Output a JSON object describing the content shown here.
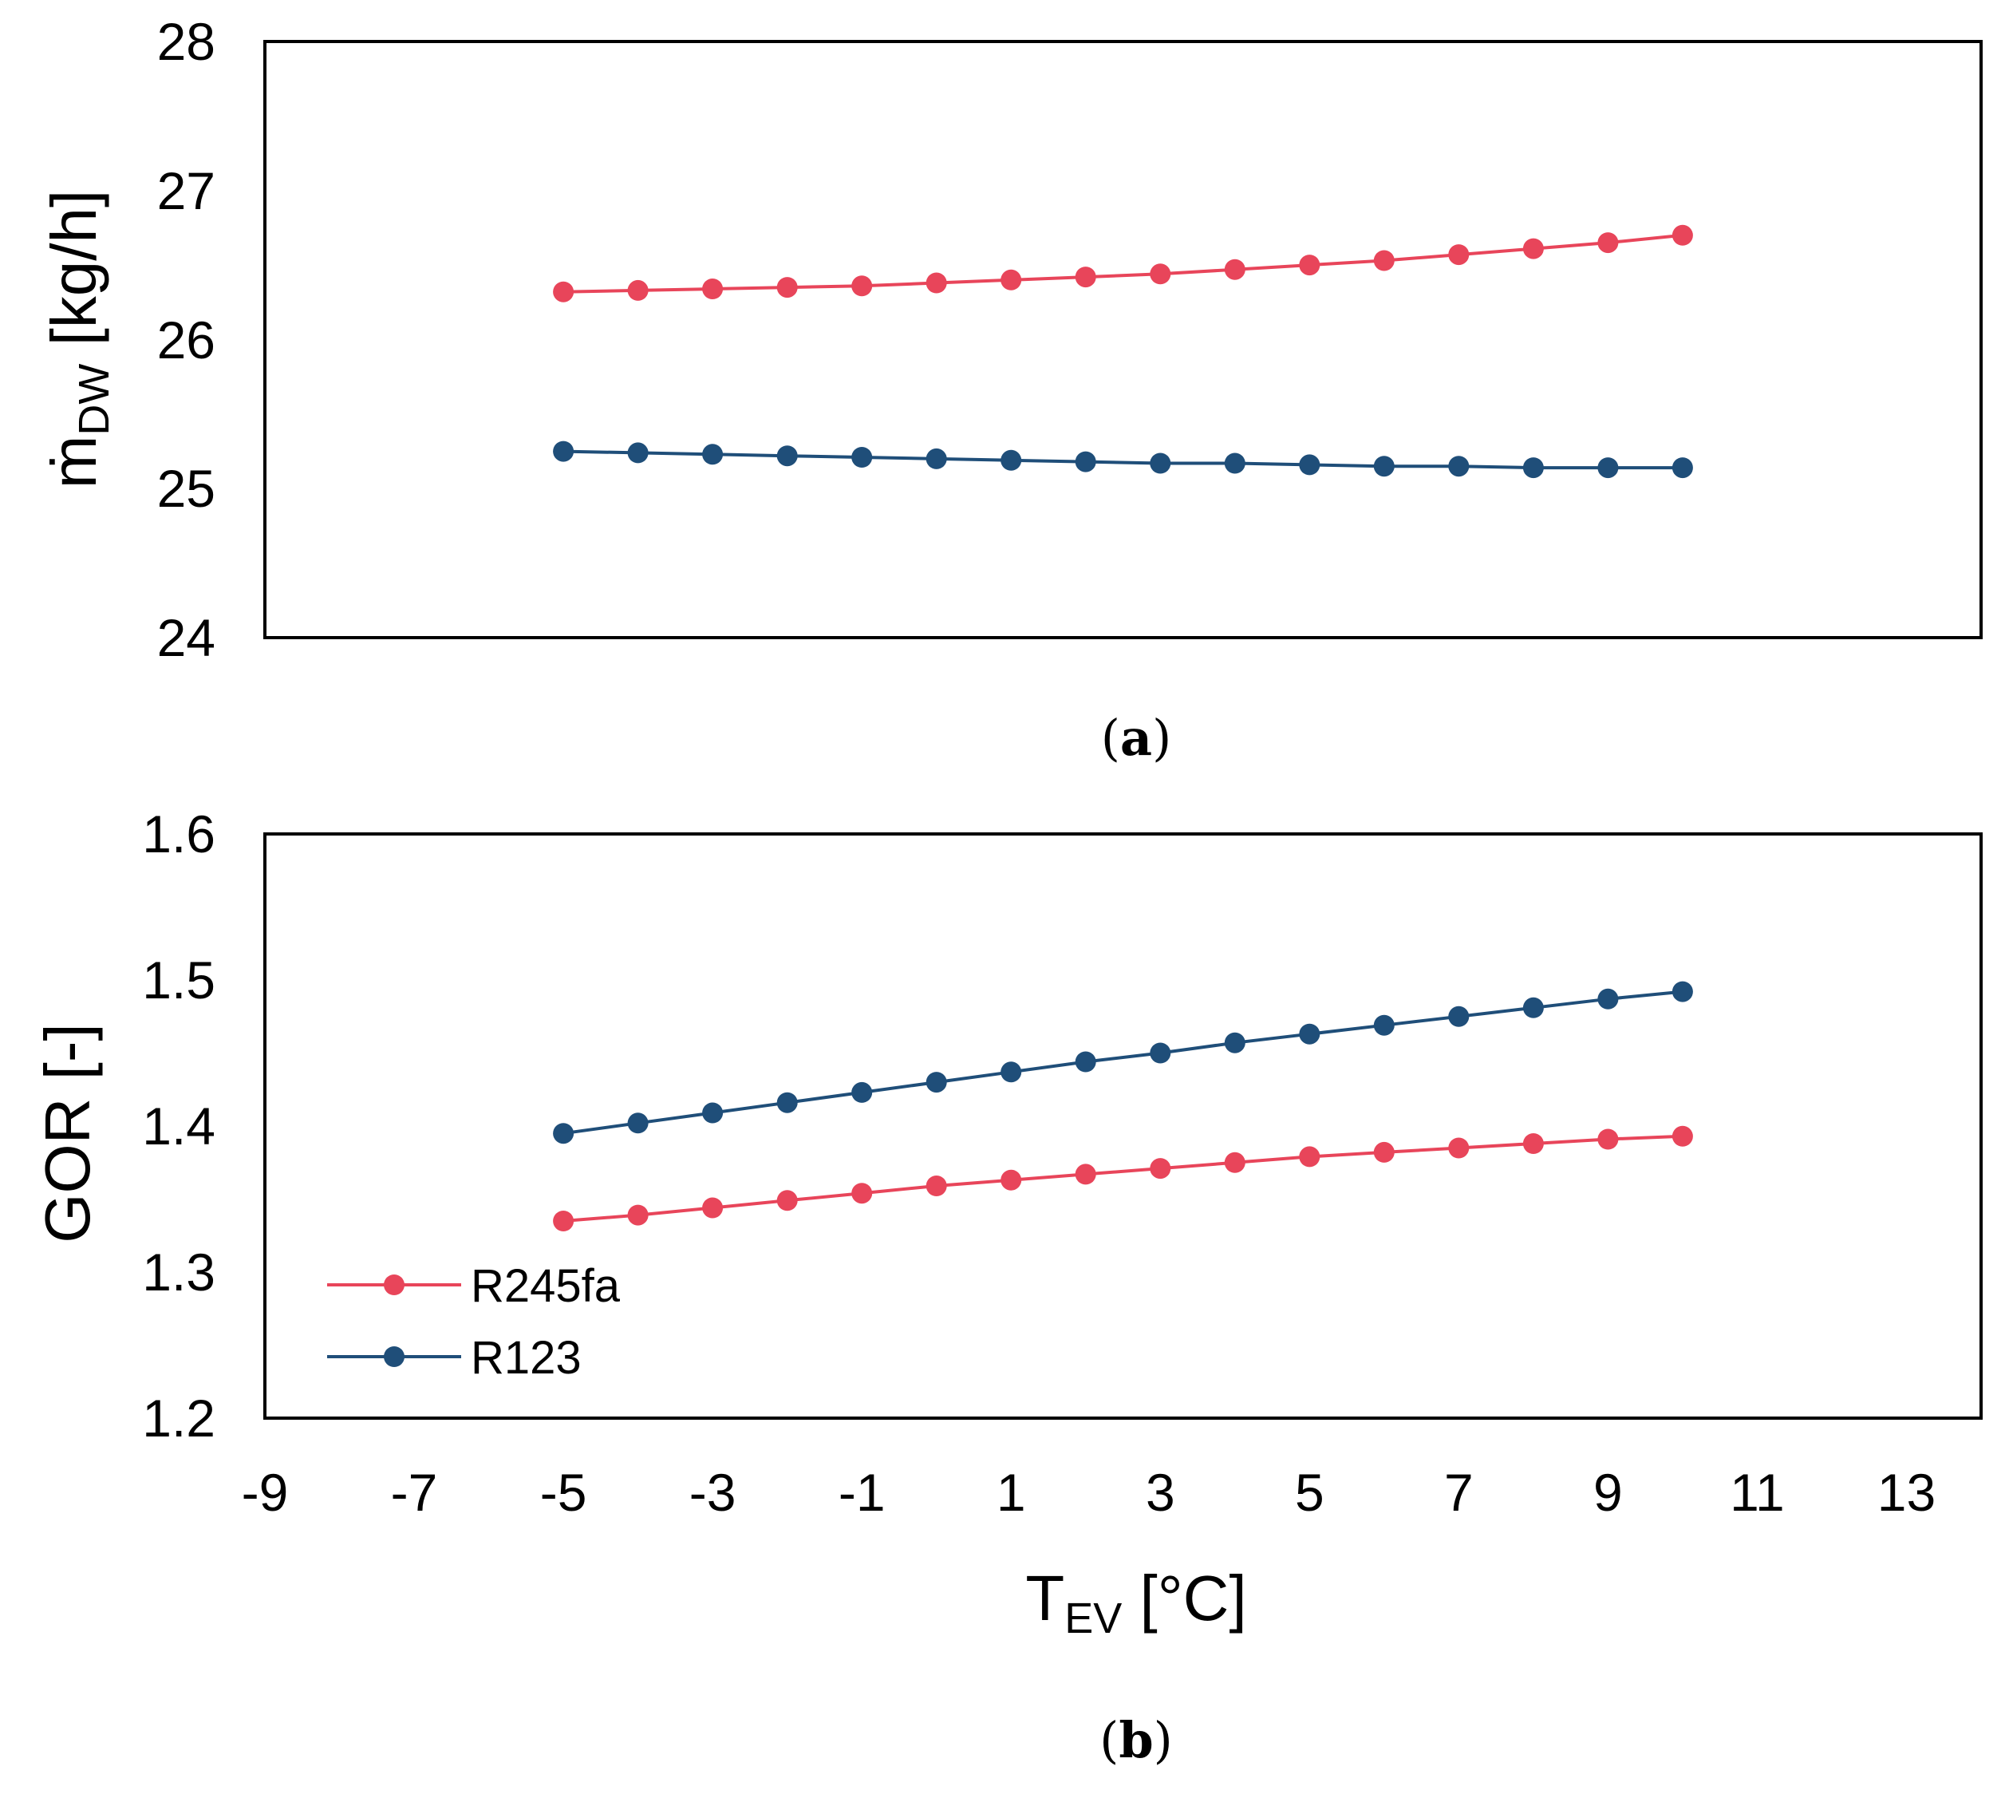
{
  "colors": {
    "r245fa": "#E8455A",
    "r123": "#1F4E79",
    "axis": "#000000"
  },
  "chart_data": [
    {
      "type": "line",
      "panel": "a",
      "caption": {
        "open": "(",
        "letter": "a",
        "close": ")"
      },
      "ylabel": {
        "main": "ṁ",
        "sub": "DW",
        "unit": " [kg/h]"
      },
      "ylim": [
        24,
        28
      ],
      "yticks": [
        "24",
        "25",
        "26",
        "27",
        "28"
      ],
      "xlim": [
        -9,
        14
      ],
      "series": [
        {
          "name": "R245fa",
          "x": [
            -5,
            -4,
            -3,
            -2,
            -1,
            0,
            1,
            2,
            3,
            4,
            5,
            6,
            7,
            8,
            9,
            10
          ],
          "values": [
            26.32,
            26.33,
            26.34,
            26.35,
            26.36,
            26.38,
            26.4,
            26.42,
            26.44,
            26.47,
            26.5,
            26.53,
            26.57,
            26.61,
            26.65,
            26.7
          ]
        },
        {
          "name": "R123",
          "x": [
            -5,
            -4,
            -3,
            -2,
            -1,
            0,
            1,
            2,
            3,
            4,
            5,
            6,
            7,
            8,
            9,
            10
          ],
          "values": [
            25.25,
            25.24,
            25.23,
            25.22,
            25.21,
            25.2,
            25.19,
            25.18,
            25.17,
            25.17,
            25.16,
            25.15,
            25.15,
            25.14,
            25.14,
            25.14
          ]
        }
      ]
    },
    {
      "type": "line",
      "panel": "b",
      "caption": {
        "open": "(",
        "letter": "b",
        "close": ")"
      },
      "ylabel": {
        "main": "GOR [-]"
      },
      "xlabel": {
        "main": "T",
        "sub": "EV",
        "unit": " [°C]"
      },
      "ylim": [
        1.2,
        1.6
      ],
      "yticks": [
        "1.2",
        "1.3",
        "1.4",
        "1.5",
        "1.6"
      ],
      "xlim": [
        -9,
        14
      ],
      "xticks": [
        "-9",
        "-7",
        "-5",
        "-3",
        "-1",
        "1",
        "3",
        "5",
        "7",
        "9",
        "11",
        "13"
      ],
      "legend": {
        "position": "bottom-left",
        "entries": [
          "R245fa",
          "R123"
        ]
      },
      "series": [
        {
          "name": "R245fa",
          "x": [
            -5,
            -4,
            -3,
            -2,
            -1,
            0,
            1,
            2,
            3,
            4,
            5,
            6,
            7,
            8,
            9,
            10
          ],
          "values": [
            1.335,
            1.339,
            1.344,
            1.349,
            1.354,
            1.359,
            1.363,
            1.367,
            1.371,
            1.375,
            1.379,
            1.382,
            1.385,
            1.388,
            1.391,
            1.393
          ]
        },
        {
          "name": "R123",
          "x": [
            -5,
            -4,
            -3,
            -2,
            -1,
            0,
            1,
            2,
            3,
            4,
            5,
            6,
            7,
            8,
            9,
            10
          ],
          "values": [
            1.395,
            1.402,
            1.409,
            1.416,
            1.423,
            1.43,
            1.437,
            1.444,
            1.45,
            1.457,
            1.463,
            1.469,
            1.475,
            1.481,
            1.487,
            1.492
          ]
        }
      ]
    }
  ]
}
